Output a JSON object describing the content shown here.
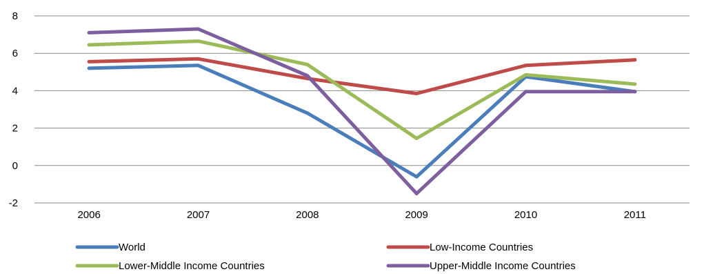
{
  "chart_data": {
    "type": "line",
    "title": "",
    "xlabel": "",
    "ylabel": "",
    "categories": [
      "2006",
      "2007",
      "2008",
      "2009",
      "2010",
      "2011"
    ],
    "ylim": [
      -2,
      8
    ],
    "yticks": [
      -2,
      0,
      2,
      4,
      6,
      8
    ],
    "grid": "horizontal",
    "legend_position": "bottom",
    "series": [
      {
        "name": "World",
        "color": "#4a7ebb",
        "values": [
          5.2,
          5.35,
          2.8,
          -0.6,
          4.75,
          3.95
        ]
      },
      {
        "name": "Low-Income Countries",
        "color": "#be4b48",
        "values": [
          5.55,
          5.7,
          4.65,
          3.85,
          5.35,
          5.65
        ]
      },
      {
        "name": "Lower-Middle Income Countries",
        "color": "#9bbb59",
        "values": [
          6.45,
          6.65,
          5.4,
          1.45,
          4.85,
          4.35
        ]
      },
      {
        "name": "Upper-Middle Income Countries",
        "color": "#7d5fa0",
        "values": [
          7.1,
          7.3,
          4.8,
          -1.5,
          3.95,
          3.95
        ]
      }
    ]
  }
}
